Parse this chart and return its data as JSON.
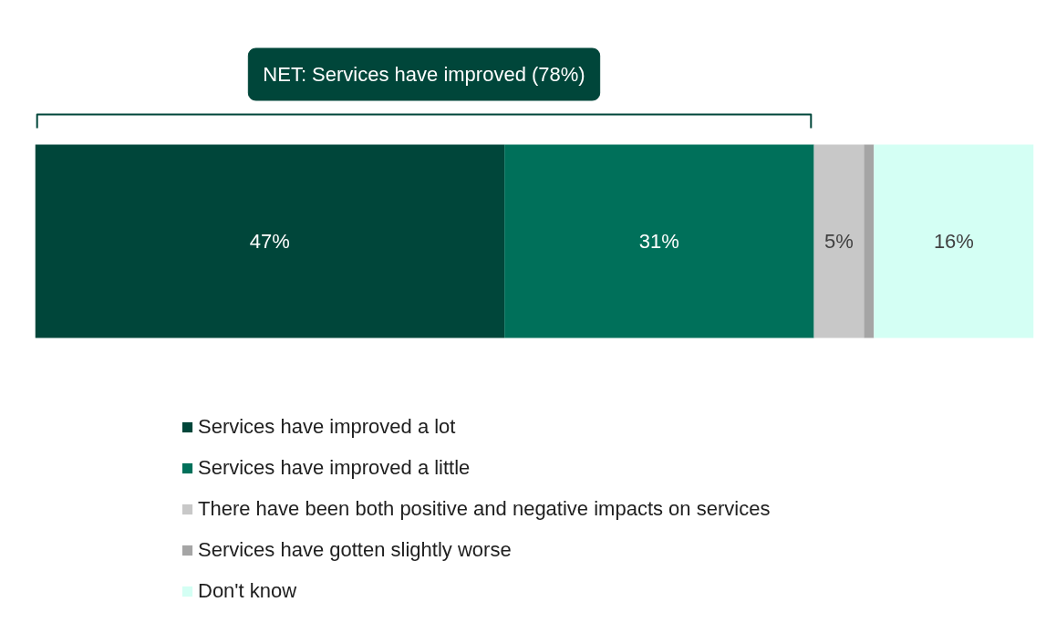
{
  "chart_data": {
    "type": "bar",
    "orientation": "horizontal",
    "stacked": true,
    "categories": [
      null
    ],
    "annotations": [
      "NET: Services have improved (78%)"
    ],
    "legend": "bottom",
    "grid": false,
    "series": [
      {
        "name": "Services have improved a lot",
        "color": "#00463a",
        "values": [
          47
        ],
        "value_labels": [
          "47%"
        ]
      },
      {
        "name": "Services have improved a little",
        "color": "#00705a",
        "values": [
          31
        ],
        "value_labels": [
          "31%"
        ]
      },
      {
        "name": "There have been both positive and negative impacts on services",
        "color": "#c8c8c8",
        "values": [
          5
        ],
        "value_labels": [
          "5%"
        ]
      },
      {
        "name": "Services have gotten slightly worse",
        "color": "#a5a5a5",
        "values": [
          1
        ],
        "value_labels": [
          null
        ]
      },
      {
        "name": "Don't know",
        "color": "#d4fff4",
        "values": [
          16
        ],
        "value_labels": [
          "16%"
        ]
      }
    ]
  }
}
